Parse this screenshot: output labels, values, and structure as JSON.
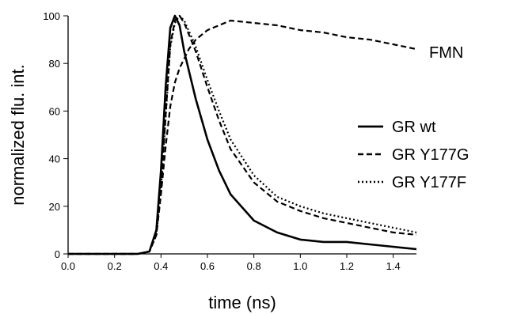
{
  "chart_data": {
    "type": "line",
    "xlabel": "time (ns)",
    "ylabel": "normalized flu. int.",
    "xlim": [
      0.0,
      1.5
    ],
    "ylim": [
      0,
      100
    ],
    "x_ticks": [
      "0.0",
      "0.2",
      "0.4",
      "0.6",
      "0.8",
      "1.0",
      "1.2",
      "1.4"
    ],
    "y_ticks": [
      "0",
      "20",
      "40",
      "60",
      "80",
      "100"
    ],
    "grid": false,
    "legend_position": "right",
    "annotation": "FMN",
    "series": [
      {
        "name": "GR wt",
        "style": "solid",
        "x": [
          0.0,
          0.3,
          0.35,
          0.38,
          0.4,
          0.42,
          0.44,
          0.46,
          0.48,
          0.5,
          0.55,
          0.6,
          0.65,
          0.7,
          0.8,
          0.9,
          1.0,
          1.1,
          1.2,
          1.3,
          1.4,
          1.5
        ],
        "y": [
          0,
          0,
          1,
          10,
          35,
          70,
          95,
          100,
          96,
          85,
          65,
          48,
          35,
          25,
          14,
          9,
          6,
          5,
          5,
          4,
          3,
          2
        ]
      },
      {
        "name": "GR Y177G",
        "style": "dashed",
        "x": [
          0.0,
          0.3,
          0.35,
          0.38,
          0.4,
          0.42,
          0.44,
          0.46,
          0.48,
          0.5,
          0.55,
          0.6,
          0.65,
          0.7,
          0.8,
          0.9,
          1.0,
          1.1,
          1.2,
          1.3,
          1.4,
          1.5
        ],
        "y": [
          0,
          0,
          1,
          8,
          28,
          58,
          88,
          98,
          100,
          97,
          85,
          70,
          56,
          44,
          30,
          22,
          18,
          15,
          13,
          11,
          9,
          8
        ]
      },
      {
        "name": "GR Y177F",
        "style": "dotted",
        "x": [
          0.0,
          0.3,
          0.35,
          0.38,
          0.4,
          0.42,
          0.44,
          0.46,
          0.48,
          0.5,
          0.55,
          0.6,
          0.65,
          0.7,
          0.8,
          0.9,
          1.0,
          1.1,
          1.2,
          1.3,
          1.4,
          1.5
        ],
        "y": [
          0,
          0,
          1,
          8,
          27,
          57,
          87,
          97,
          100,
          98,
          87,
          73,
          60,
          48,
          33,
          24,
          20,
          17,
          15,
          13,
          11,
          9
        ]
      },
      {
        "name": "FMN",
        "style": "dashed",
        "x": [
          0.0,
          0.3,
          0.35,
          0.38,
          0.4,
          0.42,
          0.44,
          0.46,
          0.48,
          0.5,
          0.52,
          0.55,
          0.6,
          0.65,
          0.7,
          0.8,
          0.9,
          1.0,
          1.1,
          1.2,
          1.3,
          1.4,
          1.5
        ],
        "y": [
          0,
          0,
          1,
          8,
          25,
          45,
          62,
          72,
          78,
          82,
          86,
          90,
          94,
          96,
          98,
          97,
          96,
          94,
          93,
          91,
          90,
          88,
          86
        ]
      }
    ]
  }
}
